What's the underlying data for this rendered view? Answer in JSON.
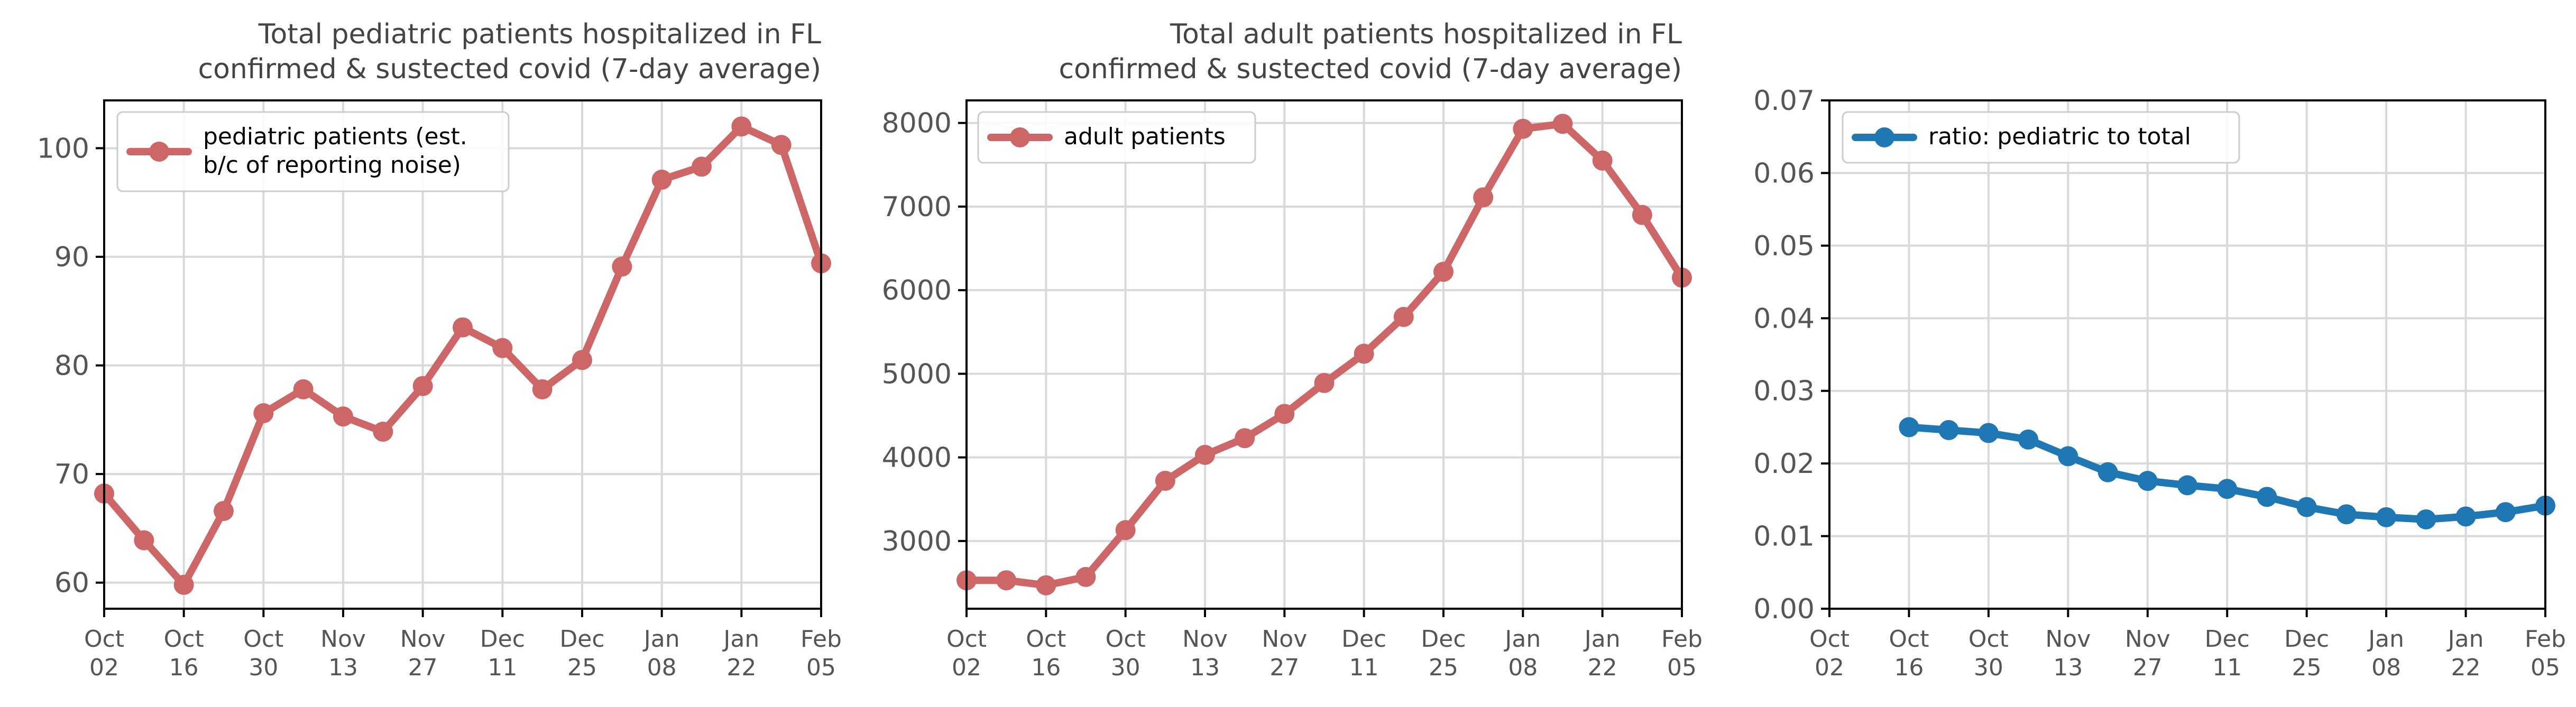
{
  "chart_data": [
    {
      "type": "line",
      "title": [
        "Total pediatric patients hospitalized in FL",
        "confirmed & sustected covid (7-day average)"
      ],
      "x": [
        "Oct 02",
        "Oct 09",
        "Oct 16",
        "Oct 23",
        "Oct 30",
        "Nov 06",
        "Nov 13",
        "Nov 20",
        "Nov 27",
        "Dec 04",
        "Dec 11",
        "Dec 18",
        "Dec 25",
        "Jan 01",
        "Jan 08",
        "Jan 15",
        "Jan 22",
        "Jan 29",
        "Feb 05"
      ],
      "xticks": [
        [
          "Oct",
          "02"
        ],
        [
          "Oct",
          "16"
        ],
        [
          "Oct",
          "30"
        ],
        [
          "Nov",
          "13"
        ],
        [
          "Nov",
          "27"
        ],
        [
          "Dec",
          "11"
        ],
        [
          "Dec",
          "25"
        ],
        [
          "Jan",
          "08"
        ],
        [
          "Jan",
          "22"
        ],
        [
          "Feb",
          "05"
        ]
      ],
      "series": [
        {
          "name": [
            "pediatric patients (est.",
            "b/c of reporting noise)"
          ],
          "color": "#cd6667",
          "values": [
            68.2,
            63.9,
            59.8,
            66.6,
            75.6,
            77.8,
            75.3,
            73.9,
            78.1,
            83.5,
            81.6,
            77.8,
            80.5,
            89.1,
            97.1,
            98.3,
            102.0,
            100.3,
            89.4
          ]
        }
      ],
      "ylim": [
        57.6,
        104.4
      ],
      "yticks": [
        60,
        70,
        80,
        90,
        100
      ],
      "ytick_labels": [
        "60",
        "70",
        "80",
        "90",
        "100"
      ],
      "grid": true,
      "legend": "upper-left"
    },
    {
      "type": "line",
      "title": [
        "Total adult patients hospitalized in FL",
        "confirmed & sustected covid (7-day average)"
      ],
      "x": [
        "Oct 02",
        "Oct 09",
        "Oct 16",
        "Oct 23",
        "Oct 30",
        "Nov 06",
        "Nov 13",
        "Nov 20",
        "Nov 27",
        "Dec 04",
        "Dec 11",
        "Dec 18",
        "Dec 25",
        "Jan 01",
        "Jan 08",
        "Jan 15",
        "Jan 22",
        "Jan 29",
        "Feb 05"
      ],
      "xticks": [
        [
          "Oct",
          "02"
        ],
        [
          "Oct",
          "16"
        ],
        [
          "Oct",
          "30"
        ],
        [
          "Nov",
          "13"
        ],
        [
          "Nov",
          "27"
        ],
        [
          "Dec",
          "11"
        ],
        [
          "Dec",
          "25"
        ],
        [
          "Jan",
          "08"
        ],
        [
          "Jan",
          "22"
        ],
        [
          "Feb",
          "05"
        ]
      ],
      "series": [
        {
          "name": [
            "adult patients"
          ],
          "color": "#cd6667",
          "values": [
            2530,
            2530,
            2470,
            2570,
            3130,
            3720,
            4030,
            4230,
            4520,
            4890,
            5240,
            5680,
            6220,
            7110,
            7930,
            7990,
            7550,
            6900,
            6150
          ]
        }
      ],
      "ylim": [
        2190,
        8270
      ],
      "yticks": [
        3000,
        4000,
        5000,
        6000,
        7000,
        8000
      ],
      "ytick_labels": [
        "3000",
        "4000",
        "5000",
        "6000",
        "7000",
        "8000"
      ],
      "grid": true,
      "legend": "upper-left"
    },
    {
      "type": "line",
      "title": [
        "",
        ""
      ],
      "x": [
        "Oct 02",
        "Oct 09",
        "Oct 16",
        "Oct 23",
        "Oct 30",
        "Nov 06",
        "Nov 13",
        "Nov 20",
        "Nov 27",
        "Dec 04",
        "Dec 11",
        "Dec 18",
        "Dec 25",
        "Jan 01",
        "Jan 08",
        "Jan 15",
        "Jan 22",
        "Jan 29",
        "Feb 05"
      ],
      "xticks": [
        [
          "Oct",
          "02"
        ],
        [
          "Oct",
          "16"
        ],
        [
          "Oct",
          "30"
        ],
        [
          "Nov",
          "13"
        ],
        [
          "Nov",
          "27"
        ],
        [
          "Dec",
          "11"
        ],
        [
          "Dec",
          "25"
        ],
        [
          "Jan",
          "08"
        ],
        [
          "Jan",
          "22"
        ],
        [
          "Feb",
          "05"
        ]
      ],
      "series": [
        {
          "name": [
            "ratio: pediatric to total"
          ],
          "color": "#1f77b4",
          "values": [
            null,
            null,
            0.025,
            0.0246,
            0.0242,
            0.0233,
            0.021,
            0.0188,
            0.0176,
            0.017,
            0.0165,
            0.0154,
            0.014,
            0.013,
            0.0126,
            0.0123,
            0.0127,
            0.0133,
            0.0142
          ]
        }
      ],
      "ylim": [
        0,
        0.07
      ],
      "yticks": [
        0,
        0.01,
        0.02,
        0.03,
        0.04,
        0.05,
        0.06,
        0.07
      ],
      "ytick_labels": [
        "0.00",
        "0.01",
        "0.02",
        "0.03",
        "0.04",
        "0.05",
        "0.06",
        "0.07"
      ],
      "grid": true,
      "legend": "upper-left"
    }
  ]
}
